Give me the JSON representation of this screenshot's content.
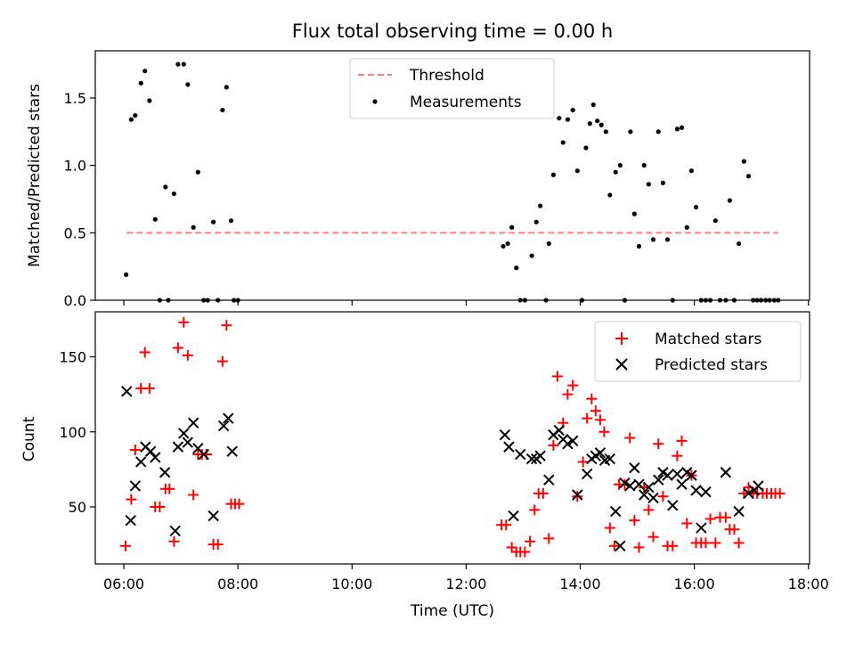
{
  "chart_data": [
    {
      "type": "scatter",
      "title": "Flux total observing time = 0.00 h",
      "xlabel": "",
      "ylabel": "Matched/Predicted stars",
      "x_unit": "hours UTC",
      "xlim": [
        5.5,
        18.02
      ],
      "ylim": [
        0,
        1.85
      ],
      "yticks": [
        0.0,
        0.5,
        1.0,
        1.5
      ],
      "ytick_labels": [
        "0.0",
        "0.5",
        "1.0",
        "1.5"
      ],
      "grid": false,
      "legend_position": "upper center",
      "series": [
        {
          "name": "Threshold",
          "kind": "dashed-line",
          "color": "#ff7f7f",
          "x": [
            6.05,
            17.47
          ],
          "y": [
            0.5,
            0.5
          ]
        },
        {
          "name": "Measurements",
          "kind": "points",
          "color": "#000000",
          "x": [
            6.04,
            6.13,
            6.2,
            6.3,
            6.37,
            6.45,
            6.55,
            6.63,
            6.73,
            6.78,
            6.88,
            6.95,
            7.05,
            7.12,
            7.22,
            7.3,
            7.4,
            7.47,
            7.57,
            7.65,
            7.73,
            7.8,
            7.88,
            7.93,
            8.0,
            12.65,
            12.73,
            12.8,
            12.88,
            12.95,
            13.03,
            13.15,
            13.23,
            13.3,
            13.4,
            13.45,
            13.53,
            13.63,
            13.7,
            13.78,
            13.87,
            13.95,
            14.03,
            14.1,
            14.17,
            14.23,
            14.3,
            14.37,
            14.45,
            14.52,
            14.62,
            14.7,
            14.78,
            14.88,
            14.95,
            15.03,
            15.12,
            15.2,
            15.28,
            15.37,
            15.45,
            15.53,
            15.62,
            15.7,
            15.78,
            15.87,
            15.95,
            16.03,
            16.12,
            16.2,
            16.28,
            16.37,
            16.45,
            16.55,
            16.62,
            16.7,
            16.78,
            16.87,
            16.95,
            17.03,
            17.1,
            17.17,
            17.25,
            17.32,
            17.4,
            17.47
          ],
          "y": [
            0.19,
            1.34,
            1.37,
            1.61,
            1.7,
            1.48,
            0.6,
            0.0,
            0.84,
            0.0,
            0.79,
            1.75,
            1.75,
            1.6,
            0.54,
            0.95,
            0.0,
            0.0,
            0.58,
            0.0,
            1.41,
            1.58,
            0.59,
            0.0,
            0.0,
            0.4,
            0.42,
            0.54,
            0.24,
            0.0,
            0.0,
            0.33,
            0.58,
            0.7,
            0.0,
            0.42,
            0.93,
            1.35,
            1.17,
            1.34,
            1.41,
            0.96,
            0.0,
            1.13,
            1.31,
            1.45,
            1.33,
            1.3,
            1.25,
            0.78,
            0.95,
            1.0,
            0.0,
            1.25,
            0.64,
            0.4,
            1.0,
            0.86,
            0.45,
            1.25,
            0.87,
            0.45,
            0.0,
            1.27,
            1.28,
            0.54,
            0.96,
            0.69,
            0.0,
            0.0,
            0.0,
            0.59,
            0.0,
            0.0,
            0.74,
            0.0,
            0.42,
            1.03,
            0.92,
            0.0,
            0.0,
            0.0,
            0.0,
            0.0,
            0.0,
            0.0
          ]
        }
      ]
    },
    {
      "type": "scatter",
      "title": "",
      "xlabel": "Time (UTC)",
      "ylabel": "Count",
      "x_unit": "hours UTC",
      "xlim": [
        5.5,
        18.02
      ],
      "ylim": [
        12,
        180
      ],
      "xticks": [
        6,
        8,
        10,
        12,
        14,
        16,
        18
      ],
      "xtick_labels": [
        "06:00",
        "08:00",
        "10:00",
        "12:00",
        "14:00",
        "16:00",
        "18:00"
      ],
      "yticks": [
        50,
        100,
        150
      ],
      "ytick_labels": [
        "50",
        "100",
        "150"
      ],
      "grid": false,
      "legend_position": "upper right",
      "series": [
        {
          "name": "Matched stars",
          "marker": "+",
          "color": "#ff0000",
          "x": [
            6.03,
            6.13,
            6.2,
            6.3,
            6.37,
            6.45,
            6.55,
            6.63,
            6.73,
            6.8,
            6.88,
            6.95,
            7.05,
            7.12,
            7.22,
            7.3,
            7.37,
            7.45,
            7.57,
            7.65,
            7.73,
            7.8,
            7.88,
            7.95,
            8.02,
            12.62,
            12.7,
            12.8,
            12.88,
            12.95,
            13.03,
            13.12,
            13.2,
            13.27,
            13.35,
            13.45,
            13.53,
            13.6,
            13.7,
            13.78,
            13.87,
            13.95,
            14.05,
            14.12,
            14.2,
            14.27,
            14.35,
            14.42,
            14.52,
            14.6,
            14.68,
            14.78,
            14.87,
            14.95,
            15.03,
            15.12,
            15.2,
            15.28,
            15.37,
            15.45,
            15.53,
            15.62,
            15.7,
            15.78,
            15.87,
            15.95,
            16.03,
            16.12,
            16.2,
            16.28,
            16.37,
            16.45,
            16.55,
            16.62,
            16.7,
            16.78,
            16.87,
            16.95,
            17.03,
            17.1,
            17.2,
            17.27,
            17.35,
            17.42,
            17.5
          ],
          "y": [
            24,
            55,
            88,
            129,
            153,
            129,
            50,
            50,
            62,
            62,
            27,
            156,
            173,
            151,
            58,
            85,
            85,
            85,
            25,
            25,
            147,
            171,
            52,
            52,
            52,
            38,
            38,
            23,
            20,
            20,
            20,
            27,
            48,
            59,
            59,
            29,
            91,
            137,
            106,
            125,
            131,
            57,
            80,
            109,
            122,
            114,
            108,
            100,
            36,
            24,
            65,
            65,
            96,
            41,
            23,
            63,
            48,
            30,
            92,
            57,
            24,
            24,
            84,
            94,
            39,
            71,
            26,
            26,
            26,
            42,
            26,
            43,
            43,
            35,
            35,
            26,
            59,
            63,
            59,
            59,
            59,
            59,
            59,
            59,
            59
          ]
        },
        {
          "name": "Predicted stars",
          "marker": "x",
          "color": "#000000",
          "x": [
            6.05,
            6.12,
            6.2,
            6.3,
            6.38,
            6.47,
            6.55,
            6.72,
            6.9,
            6.95,
            7.05,
            7.12,
            7.22,
            7.3,
            7.4,
            7.57,
            7.75,
            7.83,
            7.9,
            12.68,
            12.75,
            12.83,
            12.95,
            13.15,
            13.23,
            13.3,
            13.45,
            13.53,
            13.63,
            13.7,
            13.78,
            13.87,
            13.95,
            14.12,
            14.2,
            14.27,
            14.35,
            14.43,
            14.52,
            14.62,
            14.7,
            14.78,
            14.87,
            14.95,
            15.03,
            15.12,
            15.2,
            15.28,
            15.37,
            15.45,
            15.53,
            15.62,
            15.7,
            15.78,
            15.87,
            15.95,
            16.03,
            16.12,
            16.2,
            16.55,
            16.78,
            16.95,
            17.05,
            17.12
          ],
          "y": [
            127,
            41,
            64,
            80,
            90,
            87,
            83,
            73,
            34,
            90,
            99,
            93,
            106,
            89,
            85,
            44,
            104,
            109,
            87,
            98,
            90,
            44,
            85,
            82,
            82,
            84,
            68,
            98,
            101,
            95,
            92,
            94,
            58,
            72,
            82,
            84,
            86,
            81,
            82,
            47,
            24,
            66,
            64,
            76,
            65,
            58,
            63,
            56,
            68,
            73,
            71,
            51,
            72,
            65,
            73,
            71,
            61,
            36,
            60,
            73,
            47,
            59,
            61,
            64
          ]
        }
      ]
    }
  ]
}
